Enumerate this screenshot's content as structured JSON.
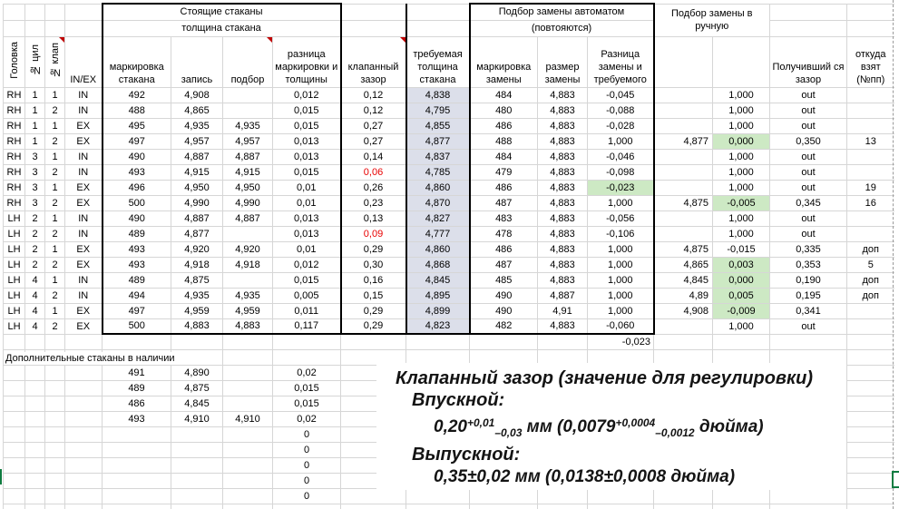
{
  "titles": {
    "standing": "Стоящие стаканы",
    "thickness": "толщина стакана",
    "auto1": "Подбор замены автоматом",
    "auto2": "(повтояются)",
    "manual": "Подбор замены в ручную"
  },
  "headers": {
    "head": "Головка",
    "cyl": "№ цил",
    "valve": "№ клап",
    "inex": "IN/EX",
    "cup_marking": "маркировка стакана",
    "record": "запись",
    "selection": "подбор",
    "diff_marking": "разница маркировки и толщины",
    "valve_gap": "клапанный зазор",
    "required_thickness": "требуемая толщина стакана",
    "repl_marking": "маркировка замены",
    "repl_size": "размер замены",
    "repl_diff": "Разница замены и требуемого",
    "result_gap": "Получивший ся зазор",
    "source": "откуда взят (№пп)"
  },
  "rows": [
    {
      "c": [
        "RH",
        "1",
        "1",
        "IN",
        "492",
        "4,908",
        "",
        "0,012",
        "0,12",
        "4,838",
        "484",
        "4,883",
        "-0,045",
        "",
        "1,000",
        "out",
        ""
      ],
      "gap_red": false,
      "diff_green": false,
      "manual_green": false
    },
    {
      "c": [
        "RH",
        "1",
        "2",
        "IN",
        "488",
        "4,865",
        "",
        "0,015",
        "0,12",
        "4,795",
        "480",
        "4,883",
        "-0,088",
        "",
        "1,000",
        "out",
        ""
      ],
      "gap_red": false,
      "diff_green": false,
      "manual_green": false
    },
    {
      "c": [
        "RH",
        "1",
        "1",
        "EX",
        "495",
        "4,935",
        "4,935",
        "0,015",
        "0,27",
        "4,855",
        "486",
        "4,883",
        "-0,028",
        "",
        "1,000",
        "out",
        ""
      ],
      "gap_red": false,
      "diff_green": false,
      "manual_green": false
    },
    {
      "c": [
        "RH",
        "1",
        "2",
        "EX",
        "497",
        "4,957",
        "4,957",
        "0,013",
        "0,27",
        "4,877",
        "488",
        "4,883",
        "1,000",
        "4,877",
        "0,000",
        "0,350",
        "13"
      ],
      "gap_red": false,
      "diff_green": false,
      "manual_green": true
    },
    {
      "c": [
        "RH",
        "3",
        "1",
        "IN",
        "490",
        "4,887",
        "4,887",
        "0,013",
        "0,14",
        "4,837",
        "484",
        "4,883",
        "-0,046",
        "",
        "1,000",
        "out",
        ""
      ],
      "gap_red": false,
      "diff_green": false,
      "manual_green": false
    },
    {
      "c": [
        "RH",
        "3",
        "2",
        "IN",
        "493",
        "4,915",
        "4,915",
        "0,015",
        "0,06",
        "4,785",
        "479",
        "4,883",
        "-0,098",
        "",
        "1,000",
        "out",
        ""
      ],
      "gap_red": true,
      "diff_green": false,
      "manual_green": false
    },
    {
      "c": [
        "RH",
        "3",
        "1",
        "EX",
        "496",
        "4,950",
        "4,950",
        "0,01",
        "0,26",
        "4,860",
        "486",
        "4,883",
        "-0,023",
        "",
        "1,000",
        "out",
        "19"
      ],
      "gap_red": false,
      "diff_green": true,
      "manual_green": false
    },
    {
      "c": [
        "RH",
        "3",
        "2",
        "EX",
        "500",
        "4,990",
        "4,990",
        "0,01",
        "0,23",
        "4,870",
        "487",
        "4,883",
        "1,000",
        "4,875",
        "-0,005",
        "0,345",
        "16"
      ],
      "gap_red": false,
      "diff_green": false,
      "manual_green": true
    },
    {
      "c": [
        "LH",
        "2",
        "1",
        "IN",
        "490",
        "4,887",
        "4,887",
        "0,013",
        "0,13",
        "4,827",
        "483",
        "4,883",
        "-0,056",
        "",
        "1,000",
        "out",
        ""
      ],
      "gap_red": false,
      "diff_green": false,
      "manual_green": false
    },
    {
      "c": [
        "LH",
        "2",
        "2",
        "IN",
        "489",
        "4,877",
        "",
        "0,013",
        "0,09",
        "4,777",
        "478",
        "4,883",
        "-0,106",
        "",
        "1,000",
        "out",
        ""
      ],
      "gap_red": true,
      "diff_green": false,
      "manual_green": false
    },
    {
      "c": [
        "LH",
        "2",
        "1",
        "EX",
        "493",
        "4,920",
        "4,920",
        "0,01",
        "0,29",
        "4,860",
        "486",
        "4,883",
        "1,000",
        "4,875",
        "-0,015",
        "0,335",
        "доп"
      ],
      "gap_red": false,
      "diff_green": false,
      "manual_green": false
    },
    {
      "c": [
        "LH",
        "2",
        "2",
        "EX",
        "493",
        "4,918",
        "4,918",
        "0,012",
        "0,30",
        "4,868",
        "487",
        "4,883",
        "1,000",
        "4,865",
        "0,003",
        "0,353",
        "5"
      ],
      "gap_red": false,
      "diff_green": false,
      "manual_green": true
    },
    {
      "c": [
        "LH",
        "4",
        "1",
        "IN",
        "489",
        "4,875",
        "",
        "0,015",
        "0,16",
        "4,845",
        "485",
        "4,883",
        "1,000",
        "4,845",
        "0,000",
        "0,190",
        "доп"
      ],
      "gap_red": false,
      "diff_green": false,
      "manual_green": true
    },
    {
      "c": [
        "LH",
        "4",
        "2",
        "IN",
        "494",
        "4,935",
        "4,935",
        "0,005",
        "0,15",
        "4,895",
        "490",
        "4,887",
        "1,000",
        "4,89",
        "0,005",
        "0,195",
        "доп"
      ],
      "gap_red": false,
      "diff_green": false,
      "manual_green": true
    },
    {
      "c": [
        "LH",
        "4",
        "1",
        "EX",
        "497",
        "4,959",
        "4,959",
        "0,011",
        "0,29",
        "4,899",
        "490",
        "4,91",
        "1,000",
        "4,908",
        "-0,009",
        "0,341",
        ""
      ],
      "gap_red": false,
      "diff_green": false,
      "manual_green": true
    },
    {
      "c": [
        "LH",
        "4",
        "2",
        "EX",
        "500",
        "4,883",
        "4,883",
        "0,117",
        "0,29",
        "4,823",
        "482",
        "4,883",
        "-0,060",
        "",
        "1,000",
        "out",
        ""
      ],
      "gap_red": false,
      "diff_green": false,
      "manual_green": false
    }
  ],
  "footer": {
    "auto_diff_total": "-0,023"
  },
  "extra": {
    "title": "Дополнительные стаканы в наличии",
    "rows": [
      [
        "491",
        "4,890",
        "",
        "0,02"
      ],
      [
        "489",
        "4,875",
        "",
        "0,015"
      ],
      [
        "486",
        "4,845",
        "",
        "0,015"
      ],
      [
        "493",
        "4,910",
        "4,910",
        "0,02"
      ]
    ],
    "zeros": [
      "0",
      "0",
      "0",
      "0",
      "0"
    ]
  },
  "note": {
    "title": "Клапанный зазор (значение для регулировки)",
    "intake_label": "Впускной:",
    "intake": {
      "base": "0,20",
      "sup": "+0,01",
      "sub": "–0,03",
      "mid": " мм (0,0079",
      "sup2": "+0,0004",
      "sub2": "–0,0012",
      "end": " дюйма)"
    },
    "exhaust_label": "Выпускной:",
    "exhaust": "0,35±0,02 мм (0,0138±0,0008 дюйма)"
  },
  "colors": {
    "required_thickness_fill": "#dcdfea",
    "highlight_green_fill": "#cde9c4",
    "alert_red_text": "#e80000",
    "comment_triangle": "#c00000",
    "selection_green": "#107c41",
    "grid_line": "#d6d6d6"
  }
}
